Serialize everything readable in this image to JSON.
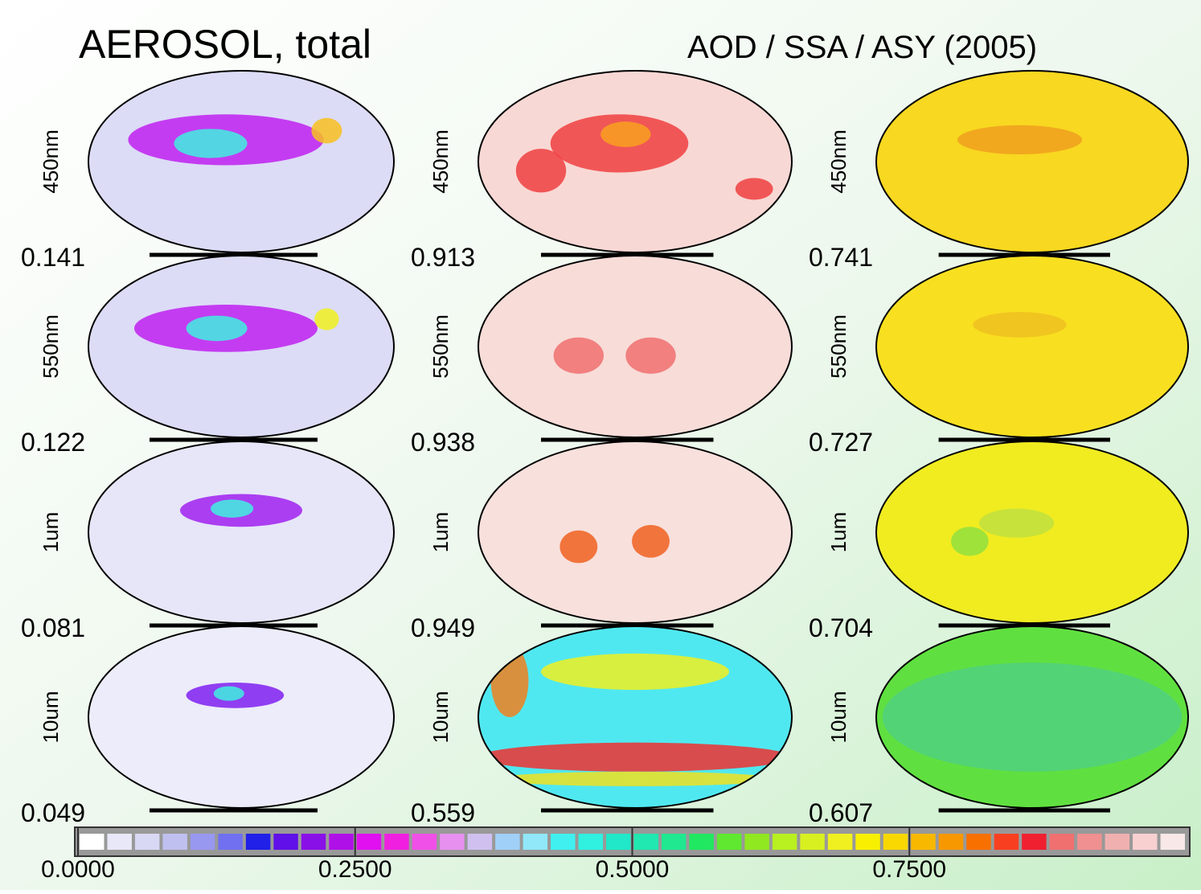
{
  "title": "AEROSOL, total",
  "subtitle": "AOD / SSA / ASY (2005)",
  "rows": [
    "450nm",
    "550nm",
    "1um",
    "10um"
  ],
  "columns": [
    {
      "values": [
        0.141,
        0.122,
        0.081,
        0.049
      ]
    },
    {
      "values": [
        0.913,
        0.938,
        0.949,
        0.559
      ]
    },
    {
      "values": [
        0.741,
        0.727,
        0.704,
        0.607
      ]
    }
  ],
  "colorbar": {
    "range": [
      0,
      1
    ],
    "ticks": [
      {
        "value": 0,
        "label": "0.0000"
      },
      {
        "value": 0.25,
        "label": "0.2500"
      },
      {
        "value": 0.5,
        "label": "0.5000"
      },
      {
        "value": 0.75,
        "label": "0.7500"
      }
    ],
    "colors": [
      "#ffffff",
      "#e8e8f8",
      "#d8d8f4",
      "#c0c0f0",
      "#9898f0",
      "#7070f0",
      "#2020e8",
      "#6010e8",
      "#8a10e8",
      "#b010e8",
      "#e010f0",
      "#f020e0",
      "#f050e8",
      "#e890f0",
      "#d0c0f0",
      "#a0d0f8",
      "#90e8f8",
      "#40f0f0",
      "#30f0e0",
      "#20e8c8",
      "#20e8b0",
      "#20e890",
      "#20e860",
      "#60e830",
      "#90e820",
      "#b8f020",
      "#d8f020",
      "#f0f020",
      "#f8f000",
      "#f8d800",
      "#f8b800",
      "#f89800",
      "#f87000",
      "#f84020",
      "#f02030",
      "#f07070",
      "#f09090",
      "#f0b0b0",
      "#f8d0d0",
      "#f8e8e8"
    ]
  }
}
